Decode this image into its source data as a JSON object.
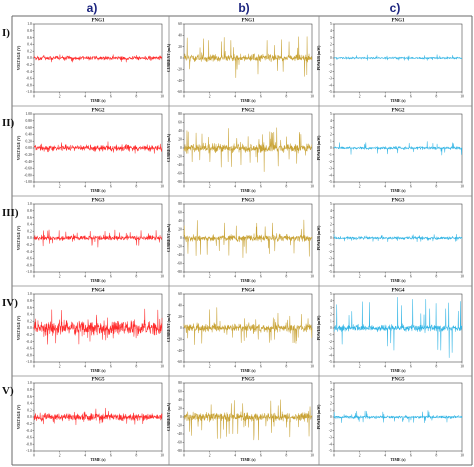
{
  "figure": {
    "columns": [
      "a)",
      "b)",
      "c)"
    ],
    "rows": [
      "I)",
      "II)",
      "III)",
      "IV)",
      "V)"
    ],
    "colors": {
      "voltage": "#ff2a2a",
      "current": "#c8a234",
      "power": "#33b5e5",
      "grid": "#8a8a8a"
    }
  },
  "chart_data": [
    {
      "type": "line",
      "title": "PNG1",
      "xlabel": "TIME (s)",
      "ylabel": "VOLTAGE (V)",
      "xlim": [
        0,
        10
      ],
      "x_ticks": [
        "0",
        "2",
        "4",
        "6",
        "8",
        "10"
      ],
      "ylim": [
        -1.0,
        1.0
      ],
      "y_ticks": [
        "1.0",
        "0.8",
        "0.6",
        "0.4",
        "0.2",
        "0.0",
        "-0.2",
        "-0.4",
        "-0.6",
        "-0.8",
        "-1.0"
      ],
      "series": [
        {
          "color": "#ff2a2a",
          "baseline": 0.0,
          "noise_amplitude": 0.06,
          "spike_amplitude": 0.1
        }
      ]
    },
    {
      "type": "line",
      "title": "PNG1",
      "xlabel": "TIME (s)",
      "ylabel": "CURRENT (mA)",
      "xlim": [
        0,
        10
      ],
      "x_ticks": [
        "0",
        "2",
        "4",
        "6",
        "8",
        "10"
      ],
      "ylim": [
        -60,
        60
      ],
      "y_ticks": [
        "60",
        "40",
        "20",
        "0",
        "-20",
        "-40",
        "-60"
      ],
      "series": [
        {
          "color": "#c8a234",
          "baseline": 0,
          "noise_amplitude": 6,
          "spike_amplitude": 38
        }
      ]
    },
    {
      "type": "line",
      "title": "PNG1",
      "xlabel": "TIME (s)",
      "ylabel": "POWER (mW)",
      "xlim": [
        0,
        10
      ],
      "x_ticks": [
        "0",
        "2",
        "4",
        "6",
        "8",
        "10"
      ],
      "ylim": [
        -5,
        5
      ],
      "y_ticks": [
        "5",
        "4",
        "3",
        "2",
        "1",
        "0",
        "-1",
        "-2",
        "-3",
        "-4",
        "-5"
      ],
      "series": [
        {
          "color": "#33b5e5",
          "baseline": 0,
          "noise_amplitude": 0.15,
          "spike_amplitude": 0.4
        }
      ]
    },
    {
      "type": "line",
      "title": "PNG2",
      "xlabel": "TIME (s)",
      "ylabel": "VOLTAGE (V)",
      "xlim": [
        0,
        10
      ],
      "x_ticks": [
        "0",
        "2",
        "4",
        "6",
        "8",
        "10"
      ],
      "ylim": [
        -1.0,
        1.0
      ],
      "y_ticks": [
        "1.00",
        "0.80",
        "0.60",
        "0.40",
        "0.20",
        "0.00",
        "-0.20",
        "-0.40",
        "-0.60",
        "-0.80",
        "-1.00"
      ],
      "series": [
        {
          "color": "#ff2a2a",
          "baseline": 0.0,
          "noise_amplitude": 0.08,
          "spike_amplitude": 0.14
        }
      ]
    },
    {
      "type": "line",
      "title": "PNG2",
      "xlabel": "TIME (s)",
      "ylabel": "CURRENT (mA)",
      "xlim": [
        0,
        10
      ],
      "x_ticks": [
        "0",
        "2",
        "4",
        "6",
        "8",
        "10"
      ],
      "ylim": [
        -80,
        80
      ],
      "y_ticks": [
        "80",
        "60",
        "40",
        "20",
        "0",
        "-20",
        "-40",
        "-60",
        "-80"
      ],
      "series": [
        {
          "color": "#c8a234",
          "baseline": 0,
          "noise_amplitude": 10,
          "spike_amplitude": 50
        }
      ]
    },
    {
      "type": "line",
      "title": "PNG2",
      "xlabel": "TIME (s)",
      "ylabel": "POWER (mW)",
      "xlim": [
        0,
        10
      ],
      "x_ticks": [
        "0",
        "2",
        "4",
        "6",
        "8",
        "10"
      ],
      "ylim": [
        -5,
        5
      ],
      "y_ticks": [
        "5",
        "4",
        "3",
        "2",
        "1",
        "0",
        "-1",
        "-2",
        "-3",
        "-4",
        "-5"
      ],
      "series": [
        {
          "color": "#33b5e5",
          "baseline": 0,
          "noise_amplitude": 0.2,
          "spike_amplitude": 0.9
        }
      ]
    },
    {
      "type": "line",
      "title": "PNG3",
      "xlabel": "TIME (s)",
      "ylabel": "VOLTAGE (V)",
      "xlim": [
        0,
        10
      ],
      "x_ticks": [
        "0",
        "2",
        "4",
        "6",
        "8",
        "10"
      ],
      "ylim": [
        -1.0,
        1.0
      ],
      "y_ticks": [
        "1.0",
        "0.8",
        "0.6",
        "0.4",
        "0.2",
        "0.0",
        "-0.2",
        "-0.4",
        "-0.6",
        "-0.8",
        "-1.0"
      ],
      "series": [
        {
          "color": "#ff2a2a",
          "baseline": 0.0,
          "noise_amplitude": 0.07,
          "spike_amplitude": 0.25
        }
      ]
    },
    {
      "type": "line",
      "title": "PNG3",
      "xlabel": "TIME (s)",
      "ylabel": "CURRENT (mA)",
      "xlim": [
        0,
        10
      ],
      "x_ticks": [
        "0",
        "2",
        "4",
        "6",
        "8",
        "10"
      ],
      "ylim": [
        -80,
        80
      ],
      "y_ticks": [
        "80",
        "60",
        "40",
        "20",
        "0",
        "-20",
        "-40",
        "-60",
        "-80"
      ],
      "series": [
        {
          "color": "#c8a234",
          "baseline": 0,
          "noise_amplitude": 8,
          "spike_amplitude": 45
        }
      ]
    },
    {
      "type": "line",
      "title": "PNG3",
      "xlabel": "TIME (s)",
      "ylabel": "POWER (mW)",
      "xlim": [
        0,
        10
      ],
      "x_ticks": [
        "0",
        "2",
        "4",
        "6",
        "8",
        "10"
      ],
      "ylim": [
        -5,
        5
      ],
      "y_ticks": [
        "5",
        "4",
        "3",
        "2",
        "1",
        "0",
        "-1",
        "-2",
        "-3",
        "-4",
        "-5"
      ],
      "series": [
        {
          "color": "#33b5e5",
          "baseline": 0,
          "noise_amplitude": 0.2,
          "spike_amplitude": 0.5
        }
      ]
    },
    {
      "type": "line",
      "title": "PNG4",
      "xlabel": "TIME (s)",
      "ylabel": "VOLTAGE (V)",
      "xlim": [
        0,
        10
      ],
      "x_ticks": [
        "0",
        "2",
        "4",
        "6",
        "8",
        "10"
      ],
      "ylim": [
        -1.0,
        1.0
      ],
      "y_ticks": [
        "1.0",
        "0.8",
        "0.6",
        "0.4",
        "0.2",
        "0.0",
        "-0.2",
        "-0.4",
        "-0.6",
        "-0.8",
        "-1.0"
      ],
      "series": [
        {
          "color": "#ff2a2a",
          "baseline": 0.0,
          "noise_amplitude": 0.22,
          "spike_amplitude": 0.5
        }
      ]
    },
    {
      "type": "line",
      "title": "PNG4",
      "xlabel": "TIME (s)",
      "ylabel": "CURRENT (mA)",
      "xlim": [
        0,
        10
      ],
      "x_ticks": [
        "0",
        "2",
        "4",
        "6",
        "8",
        "10"
      ],
      "ylim": [
        -60,
        60
      ],
      "y_ticks": [
        "60",
        "40",
        "20",
        "0",
        "-20",
        "-40",
        "-60"
      ],
      "series": [
        {
          "color": "#c8a234",
          "baseline": 0,
          "noise_amplitude": 7,
          "spike_amplitude": 30
        }
      ]
    },
    {
      "type": "line",
      "title": "PNG4",
      "xlabel": "TIME (s)",
      "ylabel": "POWER (mW)",
      "xlim": [
        0,
        10
      ],
      "x_ticks": [
        "0",
        "2",
        "4",
        "6",
        "8",
        "10"
      ],
      "ylim": [
        -5,
        5
      ],
      "y_ticks": [
        "5",
        "4",
        "3",
        "2",
        "1",
        "0",
        "-1",
        "-2",
        "-3",
        "-4",
        "-5"
      ],
      "series": [
        {
          "color": "#33b5e5",
          "baseline": 0,
          "noise_amplitude": 0.5,
          "spike_amplitude": 4.5
        }
      ]
    },
    {
      "type": "line",
      "title": "PNG5",
      "xlabel": "TIME (s)",
      "ylabel": "VOLTAGE (V)",
      "xlim": [
        0,
        10
      ],
      "x_ticks": [
        "0",
        "2",
        "4",
        "6",
        "8",
        "10"
      ],
      "ylim": [
        -1.0,
        1.0
      ],
      "y_ticks": [
        "1.0",
        "0.8",
        "0.6",
        "0.4",
        "0.2",
        "0.0",
        "-0.2",
        "-0.4",
        "-0.6",
        "-0.8",
        "-1.0"
      ],
      "series": [
        {
          "color": "#ff2a2a",
          "baseline": 0.0,
          "noise_amplitude": 0.1,
          "spike_amplitude": 0.2
        }
      ]
    },
    {
      "type": "line",
      "title": "PNG5",
      "xlabel": "TIME (s)",
      "ylabel": "CURRENT (mA)",
      "xlim": [
        0,
        10
      ],
      "x_ticks": [
        "0",
        "2",
        "4",
        "6",
        "8",
        "10"
      ],
      "ylim": [
        -80,
        80
      ],
      "y_ticks": [
        "80",
        "60",
        "40",
        "20",
        "0",
        "-20",
        "-40",
        "-60",
        "-80"
      ],
      "series": [
        {
          "color": "#c8a234",
          "baseline": 0,
          "noise_amplitude": 10,
          "spike_amplitude": 55
        }
      ]
    },
    {
      "type": "line",
      "title": "PNG5",
      "xlabel": "TIME (s)",
      "ylabel": "POWER (mW)",
      "xlim": [
        0,
        10
      ],
      "x_ticks": [
        "0",
        "2",
        "4",
        "6",
        "8",
        "10"
      ],
      "ylim": [
        -5,
        5
      ],
      "y_ticks": [
        "5",
        "4",
        "3",
        "2",
        "1",
        "0",
        "-1",
        "-2",
        "-3",
        "-4",
        "-5"
      ],
      "series": [
        {
          "color": "#33b5e5",
          "baseline": 0,
          "noise_amplitude": 0.2,
          "spike_amplitude": 0.9
        }
      ]
    }
  ]
}
